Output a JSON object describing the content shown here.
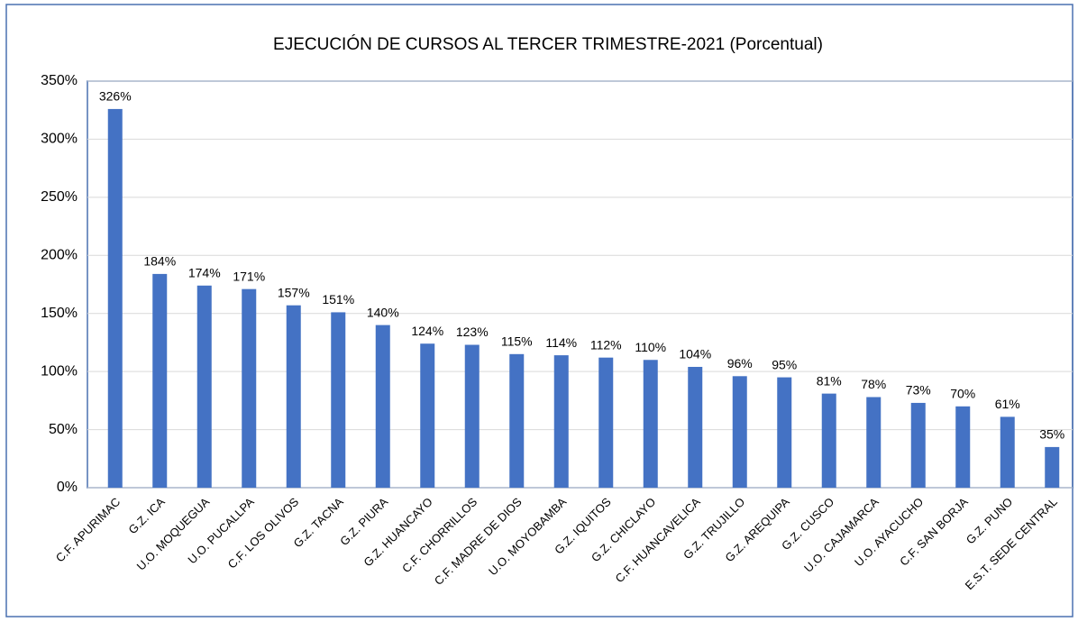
{
  "chart_data": {
    "type": "bar",
    "title": "EJECUCIÓN DE CURSOS AL TERCER TRIMESTRE-2021 (Porcentual)",
    "categories": [
      "C.F. APURIMAC",
      "G.Z. ICA",
      "U.O. MOQUEGUA",
      "U.O. PUCALLPA",
      "C.F. LOS OLIVOS",
      "G.Z. TACNA",
      "G.Z. PIURA",
      "G.Z. HUANCAYO",
      "C.F. CHORRILLOS",
      "C.F. MADRE DE DIOS",
      "U.O. MOYOBAMBA",
      "G.Z. IQUITOS",
      "G.Z. CHICLAYO",
      "C.F. HUANCAVELICA",
      "G.Z. TRUJILLO",
      "G.Z. AREQUIPA",
      "G.Z. CUSCO",
      "U.O. CAJAMARCA",
      "U.O. AYACUCHO",
      "C.F. SAN BORJA",
      "G.Z. PUNO",
      "E.S.T. SEDE CENTRAL"
    ],
    "values": [
      326,
      184,
      174,
      171,
      157,
      151,
      140,
      124,
      123,
      115,
      114,
      112,
      110,
      104,
      96,
      95,
      81,
      78,
      73,
      70,
      61,
      35
    ],
    "value_labels": [
      "326%",
      "184%",
      "174%",
      "171%",
      "157%",
      "151%",
      "140%",
      "124%",
      "123%",
      "115%",
      "114%",
      "112%",
      "110%",
      "104%",
      "96%",
      "95%",
      "81%",
      "78%",
      "73%",
      "70%",
      "61%",
      "35%"
    ],
    "color": "#4472c4",
    "ylim": [
      0,
      350
    ],
    "yticks": [
      {
        "value": 0,
        "label": "0%"
      },
      {
        "value": 50,
        "label": "50%"
      },
      {
        "value": 100,
        "label": "100%"
      },
      {
        "value": 150,
        "label": "150%"
      },
      {
        "value": 200,
        "label": "200%"
      },
      {
        "value": 250,
        "label": "250%"
      },
      {
        "value": 300,
        "label": "300%"
      },
      {
        "value": 350,
        "label": "350%"
      }
    ],
    "grid": true
  }
}
